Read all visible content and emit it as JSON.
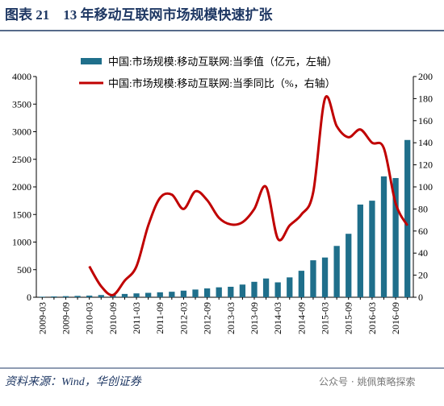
{
  "title": "图表 21　13 年移动互联网市场规模快速扩张",
  "source": "资料来源：Wind，华创证券",
  "watermark": "公众号 · 姚佩策略探索",
  "chart_data": {
    "type": "bar_line",
    "categories": [
      "2009-03",
      null,
      "2009-09",
      null,
      "2010-03",
      null,
      "2010-09",
      null,
      "2011-03",
      null,
      "2011-09",
      null,
      "2012-03",
      null,
      "2012-09",
      null,
      "2013-03",
      null,
      "2013-09",
      null,
      "2014-03",
      null,
      "2014-09",
      null,
      "2015-03",
      null,
      "2015-09",
      null,
      "2016-03",
      null,
      "2016-09",
      null
    ],
    "series": [
      {
        "name": "中国:市场规模:移动互联网:当季值（亿元，左轴）",
        "color": "#1f6f8b",
        "type": "bar",
        "values": [
          10,
          15,
          20,
          25,
          30,
          40,
          50,
          60,
          70,
          80,
          90,
          100,
          120,
          140,
          160,
          180,
          190,
          230,
          280,
          340,
          270,
          360,
          480,
          670,
          720,
          930,
          1150,
          1680,
          1750,
          2190,
          2160,
          2850
        ]
      },
      {
        "name": "中国:市场规模:移动互联网:当季同比（%，右轴）",
        "color": "#c00000",
        "type": "line",
        "axis": "y2",
        "values": [
          null,
          null,
          null,
          null,
          28,
          10,
          2,
          15,
          28,
          65,
          90,
          93,
          80,
          96,
          88,
          72,
          66,
          68,
          80,
          100,
          53,
          65,
          75,
          95,
          180,
          155,
          145,
          152,
          140,
          135,
          85,
          65
        ]
      }
    ],
    "ylim": [
      0,
      4000
    ],
    "yticks": [
      0,
      500,
      1000,
      1500,
      2000,
      2500,
      3000,
      3500,
      4000
    ],
    "y2lim": [
      0,
      200
    ],
    "y2ticks": [
      0,
      20,
      40,
      60,
      80,
      100,
      120,
      140,
      160,
      180,
      200
    ]
  }
}
